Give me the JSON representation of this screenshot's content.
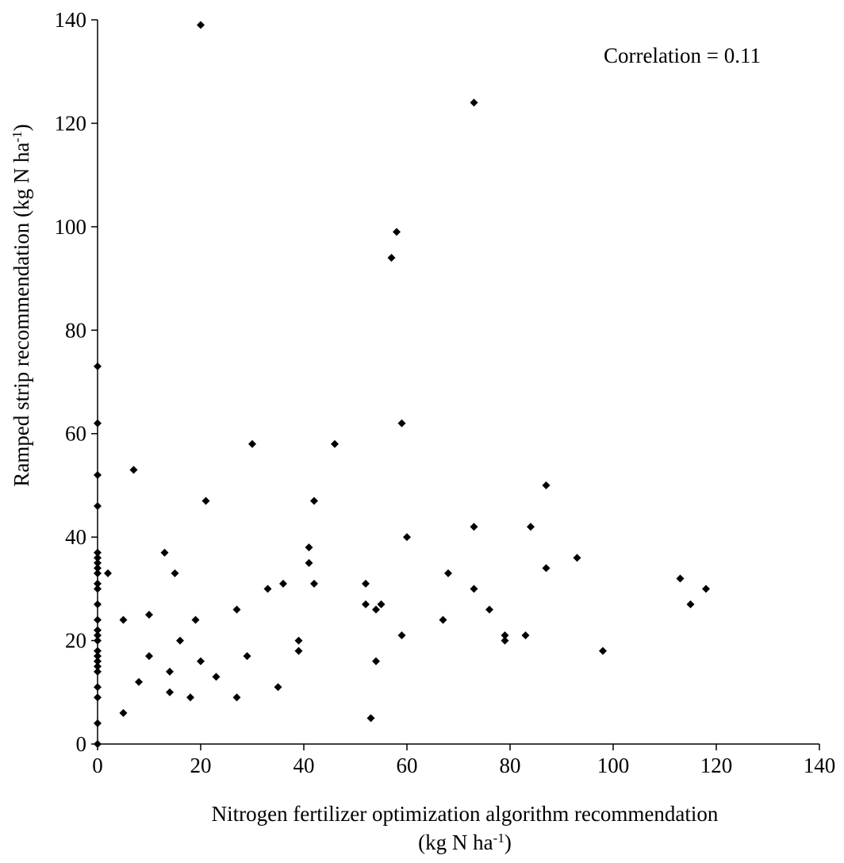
{
  "chart_data": {
    "type": "scatter",
    "title": "",
    "xlabel": {
      "line1": "Nitrogen fertilizer optimization algorithm recommendation",
      "line2_pre": "(kg N ha",
      "line2_sup": "-1",
      "line2_post": ")"
    },
    "ylabel": {
      "pre": "Ramped strip recommendation (kg N ha",
      "sup": "-1",
      "post": ")"
    },
    "annotation": "Correlation = 0.11",
    "xlim": [
      0,
      140
    ],
    "ylim": [
      0,
      140
    ],
    "x_ticks": [
      "0",
      "20",
      "40",
      "60",
      "80",
      "100",
      "120",
      "140"
    ],
    "y_ticks": [
      "0",
      "20",
      "40",
      "60",
      "80",
      "100",
      "120",
      "140"
    ],
    "grid": false,
    "marker": "diamond",
    "marker_color": "#000000",
    "points": [
      [
        0,
        0
      ],
      [
        0,
        4
      ],
      [
        0,
        9
      ],
      [
        0,
        11
      ],
      [
        0,
        14
      ],
      [
        0,
        15
      ],
      [
        0,
        16
      ],
      [
        0,
        17
      ],
      [
        0,
        18
      ],
      [
        0,
        20
      ],
      [
        0,
        21
      ],
      [
        0,
        22
      ],
      [
        0,
        24
      ],
      [
        0,
        27
      ],
      [
        0,
        30
      ],
      [
        0,
        31
      ],
      [
        0,
        33
      ],
      [
        0,
        34
      ],
      [
        0,
        35
      ],
      [
        0,
        36
      ],
      [
        0,
        37
      ],
      [
        0,
        46
      ],
      [
        0,
        52
      ],
      [
        0,
        62
      ],
      [
        0,
        73
      ],
      [
        2,
        33
      ],
      [
        5,
        24
      ],
      [
        5,
        6
      ],
      [
        7,
        53
      ],
      [
        8,
        12
      ],
      [
        10,
        25
      ],
      [
        10,
        17
      ],
      [
        13,
        37
      ],
      [
        14,
        14
      ],
      [
        14,
        10
      ],
      [
        15,
        33
      ],
      [
        16,
        20
      ],
      [
        18,
        9
      ],
      [
        19,
        24
      ],
      [
        20,
        139
      ],
      [
        20,
        16
      ],
      [
        21,
        47
      ],
      [
        23,
        13
      ],
      [
        27,
        26
      ],
      [
        27,
        9
      ],
      [
        29,
        17
      ],
      [
        30,
        58
      ],
      [
        33,
        30
      ],
      [
        35,
        11
      ],
      [
        36,
        31
      ],
      [
        39,
        20
      ],
      [
        39,
        18
      ],
      [
        41,
        38
      ],
      [
        41,
        35
      ],
      [
        42,
        47
      ],
      [
        42,
        31
      ],
      [
        46,
        58
      ],
      [
        52,
        31
      ],
      [
        52,
        27
      ],
      [
        53,
        5
      ],
      [
        54,
        26
      ],
      [
        54,
        16
      ],
      [
        55,
        27
      ],
      [
        57,
        94
      ],
      [
        58,
        99
      ],
      [
        59,
        62
      ],
      [
        59,
        21
      ],
      [
        60,
        40
      ],
      [
        67,
        24
      ],
      [
        68,
        33
      ],
      [
        73,
        124
      ],
      [
        73,
        42
      ],
      [
        73,
        30
      ],
      [
        76,
        26
      ],
      [
        79,
        21
      ],
      [
        79,
        20
      ],
      [
        83,
        21
      ],
      [
        84,
        42
      ],
      [
        87,
        50
      ],
      [
        87,
        34
      ],
      [
        93,
        36
      ],
      [
        98,
        18
      ],
      [
        113,
        32
      ],
      [
        115,
        27
      ],
      [
        118,
        30
      ]
    ]
  }
}
